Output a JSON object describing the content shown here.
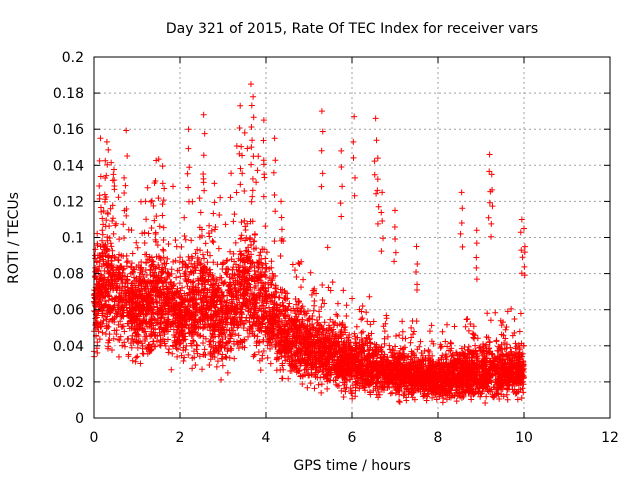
{
  "chart_data": {
    "type": "scatter",
    "title": "Day 321 of 2015, Rate Of TEC Index for receiver vars",
    "xlabel": "GPS time / hours",
    "ylabel": "ROTI / TECUs",
    "xlim": [
      0,
      12
    ],
    "ylim": [
      0,
      0.2
    ],
    "x_ticks": [
      0,
      2,
      4,
      6,
      8,
      10,
      12
    ],
    "x_tick_labels": [
      "0",
      "2",
      "4",
      "6",
      "8",
      "10",
      "12"
    ],
    "y_ticks": [
      0,
      0.02,
      0.04,
      0.06,
      0.08,
      0.1,
      0.12,
      0.14,
      0.16,
      0.18,
      0.2
    ],
    "y_tick_labels": [
      "0",
      "0.02",
      "0.04",
      "0.06",
      "0.08",
      "0.1",
      "0.12",
      "0.14",
      "0.16",
      "0.18",
      "0.2"
    ],
    "grid": true,
    "marker": "+",
    "color": "#ff0000",
    "series": [
      {
        "name": "ROTI",
        "x_range": [
          0,
          10
        ],
        "envelope": [
          {
            "x": 0.0,
            "base": 0.06,
            "spread": 0.035
          },
          {
            "x": 0.25,
            "base": 0.08,
            "spread": 0.05
          },
          {
            "x": 0.5,
            "base": 0.07,
            "spread": 0.045
          },
          {
            "x": 1.0,
            "base": 0.06,
            "spread": 0.035
          },
          {
            "x": 1.5,
            "base": 0.065,
            "spread": 0.04
          },
          {
            "x": 2.0,
            "base": 0.06,
            "spread": 0.04
          },
          {
            "x": 2.5,
            "base": 0.065,
            "spread": 0.045
          },
          {
            "x": 3.0,
            "base": 0.055,
            "spread": 0.04
          },
          {
            "x": 3.6,
            "base": 0.075,
            "spread": 0.05
          },
          {
            "x": 4.0,
            "base": 0.06,
            "spread": 0.04
          },
          {
            "x": 4.5,
            "base": 0.045,
            "spread": 0.03
          },
          {
            "x": 5.0,
            "base": 0.04,
            "spread": 0.028
          },
          {
            "x": 5.5,
            "base": 0.035,
            "spread": 0.025
          },
          {
            "x": 6.0,
            "base": 0.03,
            "spread": 0.022
          },
          {
            "x": 7.0,
            "base": 0.025,
            "spread": 0.018
          },
          {
            "x": 8.0,
            "base": 0.022,
            "spread": 0.016
          },
          {
            "x": 9.0,
            "base": 0.025,
            "spread": 0.02
          },
          {
            "x": 10.0,
            "base": 0.025,
            "spread": 0.018
          }
        ],
        "spikes": [
          {
            "x": 0.15,
            "y": 0.155
          },
          {
            "x": 0.3,
            "y": 0.153
          },
          {
            "x": 0.45,
            "y": 0.135
          },
          {
            "x": 0.7,
            "y": 0.133
          },
          {
            "x": 1.2,
            "y": 0.12
          },
          {
            "x": 1.6,
            "y": 0.13
          },
          {
            "x": 2.2,
            "y": 0.16
          },
          {
            "x": 2.55,
            "y": 0.168
          },
          {
            "x": 2.8,
            "y": 0.13
          },
          {
            "x": 3.4,
            "y": 0.173
          },
          {
            "x": 3.65,
            "y": 0.185
          },
          {
            "x": 3.7,
            "y": 0.178
          },
          {
            "x": 3.95,
            "y": 0.165
          },
          {
            "x": 4.2,
            "y": 0.155
          },
          {
            "x": 4.35,
            "y": 0.12
          },
          {
            "x": 5.3,
            "y": 0.17
          },
          {
            "x": 5.75,
            "y": 0.148
          },
          {
            "x": 6.05,
            "y": 0.167
          },
          {
            "x": 6.55,
            "y": 0.166
          },
          {
            "x": 6.6,
            "y": 0.144
          },
          {
            "x": 6.7,
            "y": 0.125
          },
          {
            "x": 7.0,
            "y": 0.115
          },
          {
            "x": 7.5,
            "y": 0.095
          },
          {
            "x": 8.55,
            "y": 0.125
          },
          {
            "x": 8.9,
            "y": 0.104
          },
          {
            "x": 9.2,
            "y": 0.146
          },
          {
            "x": 9.25,
            "y": 0.135
          },
          {
            "x": 9.95,
            "y": 0.11
          },
          {
            "x": 10.0,
            "y": 0.105
          }
        ],
        "point_count": 6000
      }
    ]
  }
}
